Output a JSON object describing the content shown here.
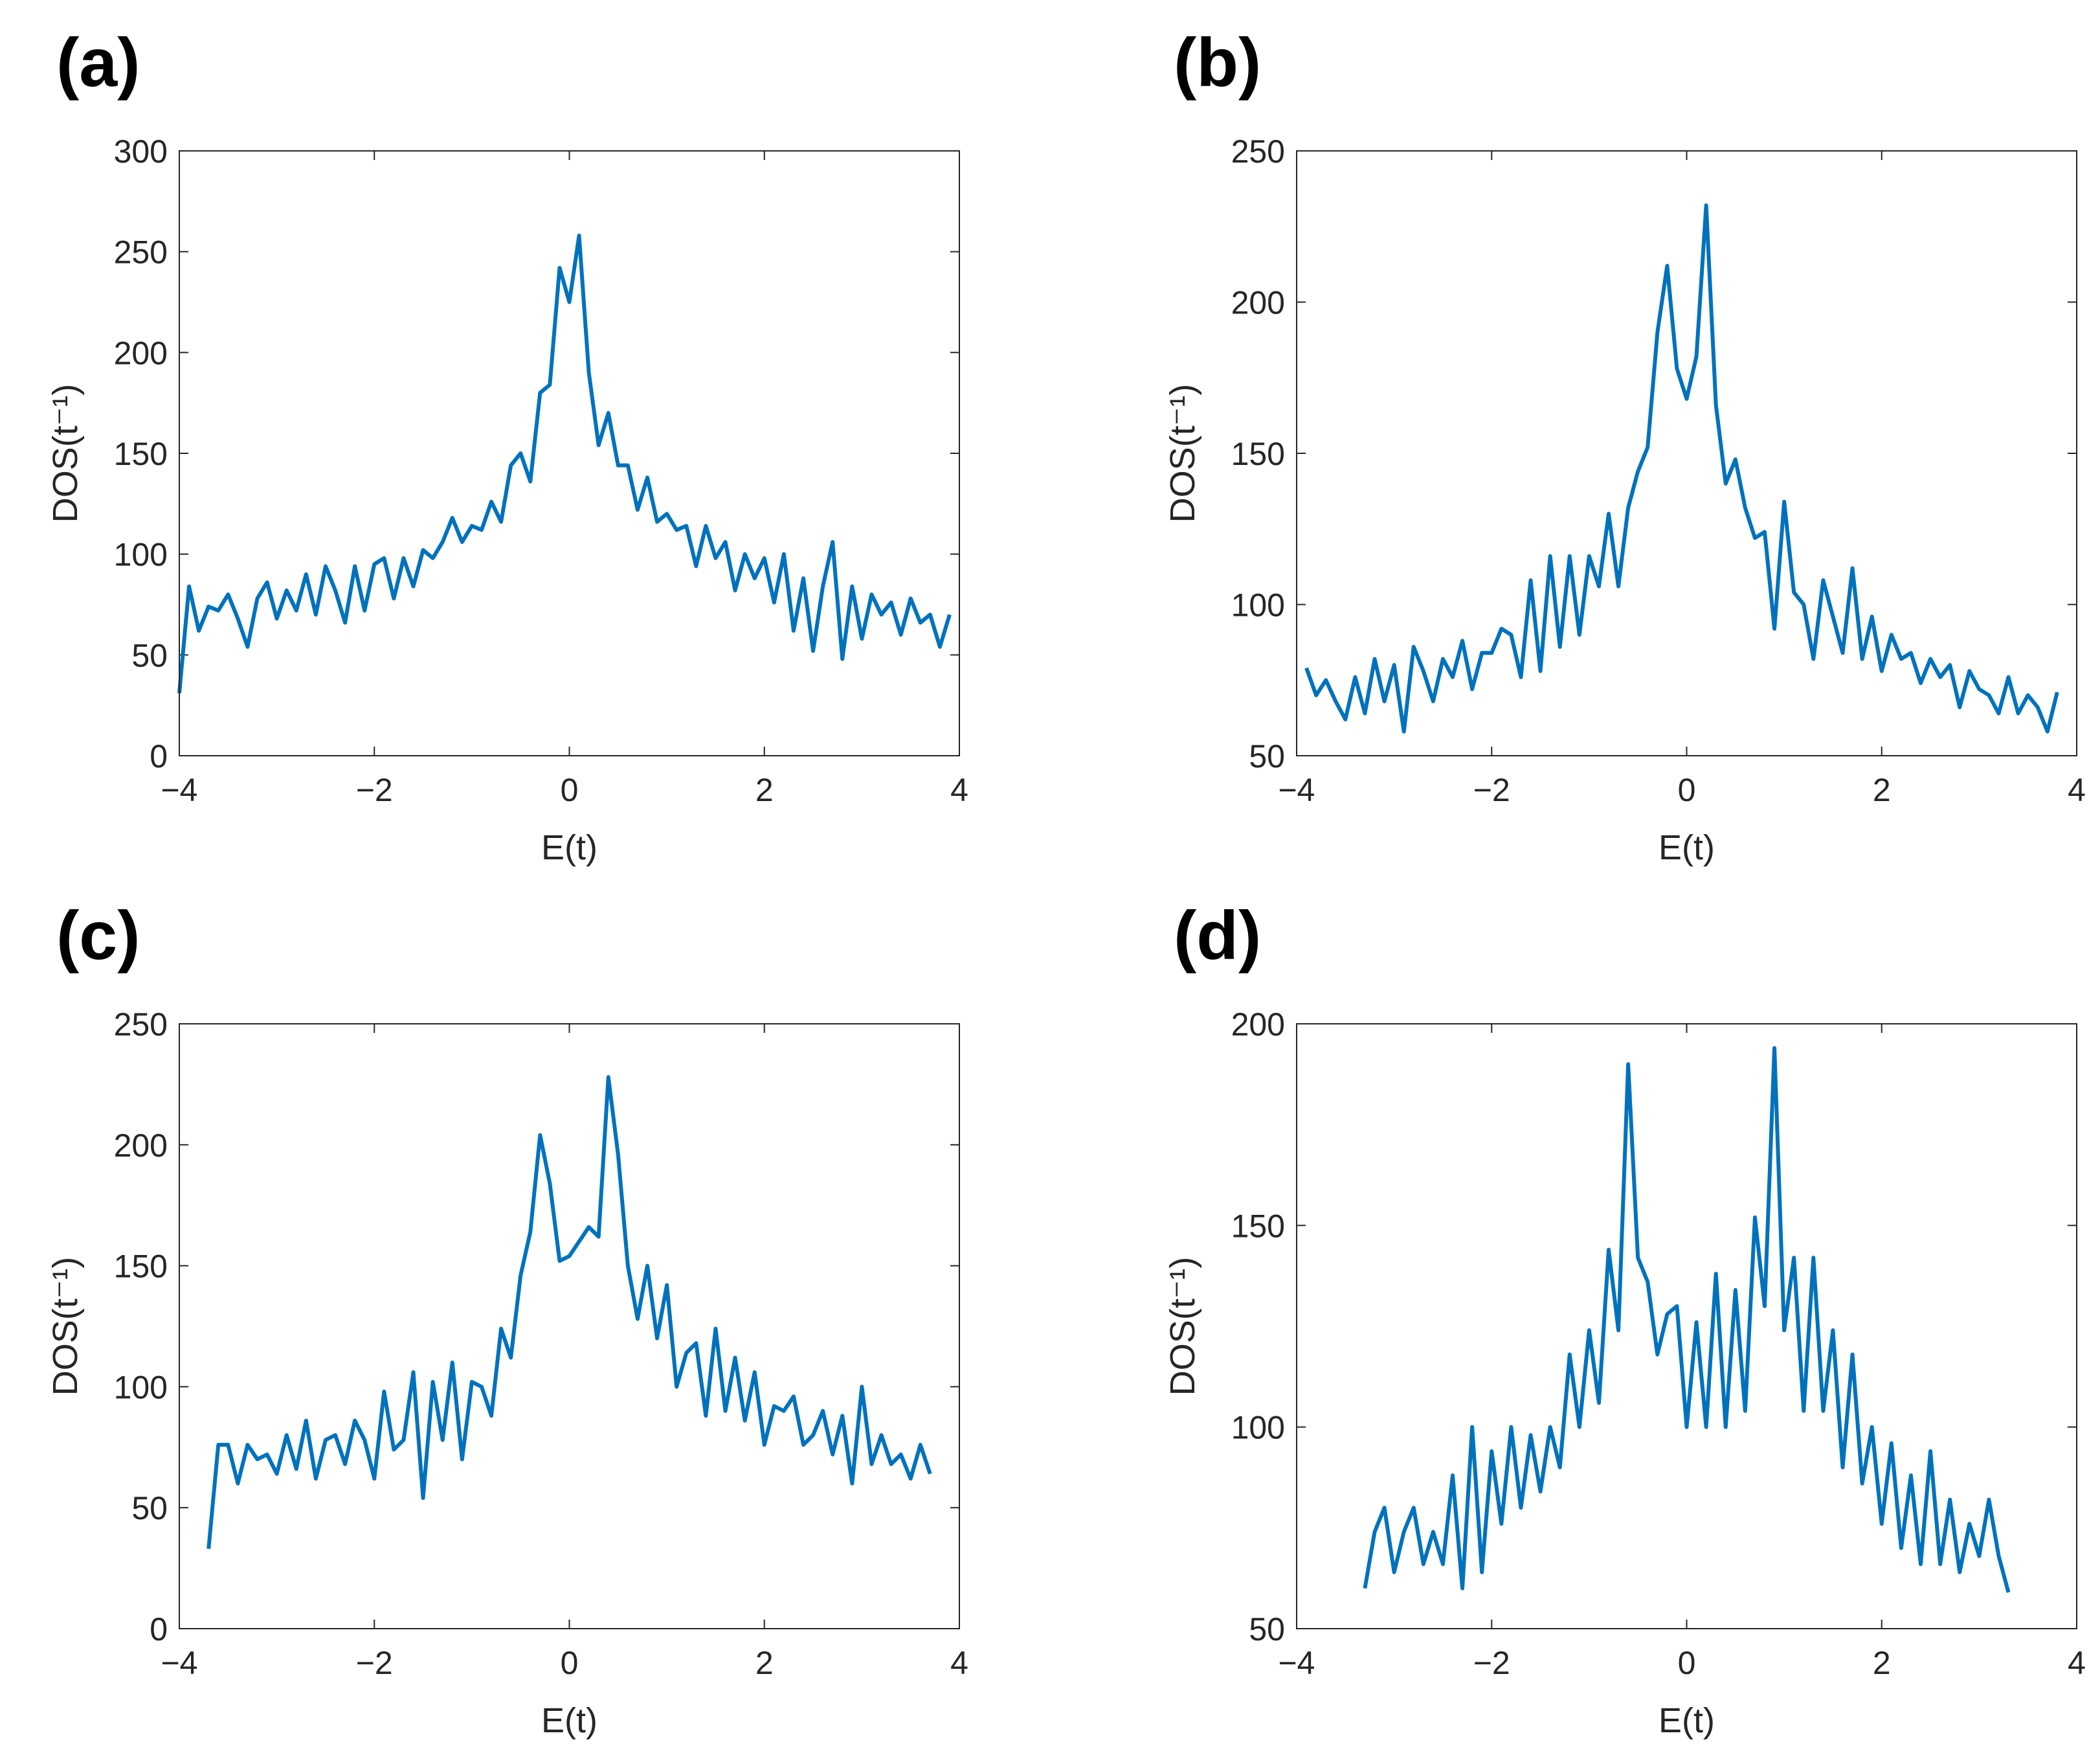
{
  "chart_data": [
    {
      "type": "line",
      "title": "(a)",
      "xlabel": "E(t)",
      "ylabel": "DOS(t⁻¹)",
      "color": "#0072BD",
      "xlim": [
        -4,
        4
      ],
      "xticks": [
        {
          "value": -4,
          "label": "−4"
        },
        {
          "value": -2,
          "label": "−2"
        },
        0,
        2,
        4
      ],
      "ylim": [
        0,
        300
      ],
      "yticks": [
        0,
        50,
        100,
        150,
        200,
        250,
        300
      ],
      "x": [
        -4.0,
        -3.9,
        -3.8,
        -3.7,
        -3.6,
        -3.5,
        -3.4,
        -3.3,
        -3.2,
        -3.1,
        -3.0,
        -2.9,
        -2.8,
        -2.7,
        -2.6,
        -2.5,
        -2.4,
        -2.3,
        -2.2,
        -2.1,
        -2.0,
        -1.9,
        -1.8,
        -1.7,
        -1.6,
        -1.5,
        -1.4,
        -1.3,
        -1.2,
        -1.1,
        -1.0,
        -0.9,
        -0.8,
        -0.7,
        -0.6,
        -0.5,
        -0.4,
        -0.3,
        -0.2,
        -0.1,
        0.0,
        0.1,
        0.2,
        0.3,
        0.4,
        0.5,
        0.6,
        0.7,
        0.8,
        0.9,
        1.0,
        1.1,
        1.2,
        1.3,
        1.4,
        1.5,
        1.6,
        1.7,
        1.8,
        1.9,
        2.0,
        2.1,
        2.2,
        2.3,
        2.4,
        2.5,
        2.6,
        2.7,
        2.8,
        2.9,
        3.0,
        3.1,
        3.2,
        3.3,
        3.4,
        3.5,
        3.6,
        3.7,
        3.8,
        3.9
      ],
      "values": [
        31,
        84,
        62,
        74,
        72,
        80,
        68,
        54,
        78,
        86,
        68,
        82,
        72,
        90,
        70,
        94,
        82,
        66,
        94,
        72,
        95,
        98,
        78,
        98,
        84,
        102,
        98,
        106,
        118,
        106,
        114,
        112,
        126,
        116,
        144,
        150,
        136,
        180,
        184,
        242,
        225,
        258,
        190,
        154,
        170,
        144,
        144,
        122,
        138,
        116,
        120,
        112,
        114,
        94,
        114,
        98,
        106,
        82,
        100,
        88,
        98,
        76,
        100,
        62,
        88,
        52,
        84,
        106,
        48,
        84,
        58,
        80,
        70,
        76,
        60,
        78,
        66,
        70,
        54,
        70
      ]
    },
    {
      "type": "line",
      "title": "(b)",
      "xlabel": "E(t)",
      "ylabel": "DOS(t⁻¹)",
      "color": "#0072BD",
      "xlim": [
        -4,
        4
      ],
      "xticks": [
        {
          "value": -4,
          "label": "−4"
        },
        {
          "value": -2,
          "label": "−2"
        },
        0,
        2,
        4
      ],
      "ylim": [
        50,
        250
      ],
      "yticks": [
        50,
        100,
        150,
        200,
        250
      ],
      "x": [
        -3.9,
        -3.8,
        -3.7,
        -3.6,
        -3.5,
        -3.4,
        -3.3,
        -3.2,
        -3.1,
        -3.0,
        -2.9,
        -2.8,
        -2.7,
        -2.6,
        -2.5,
        -2.4,
        -2.3,
        -2.2,
        -2.1,
        -2.0,
        -1.9,
        -1.8,
        -1.7,
        -1.6,
        -1.5,
        -1.4,
        -1.3,
        -1.2,
        -1.1,
        -1.0,
        -0.9,
        -0.8,
        -0.7,
        -0.6,
        -0.5,
        -0.4,
        -0.3,
        -0.2,
        -0.1,
        0.0,
        0.1,
        0.2,
        0.3,
        0.4,
        0.5,
        0.6,
        0.7,
        0.8,
        0.9,
        1.0,
        1.1,
        1.2,
        1.3,
        1.4,
        1.5,
        1.6,
        1.7,
        1.8,
        1.9,
        2.0,
        2.1,
        2.2,
        2.3,
        2.4,
        2.5,
        2.6,
        2.7,
        2.8,
        2.9,
        3.0,
        3.1,
        3.2,
        3.3,
        3.4,
        3.5,
        3.6,
        3.7,
        3.8
      ],
      "values": [
        79,
        70,
        75,
        68,
        62,
        76,
        64,
        82,
        68,
        80,
        58,
        86,
        78,
        68,
        82,
        76,
        88,
        72,
        84,
        84,
        92,
        90,
        76,
        108,
        78,
        116,
        86,
        116,
        90,
        116,
        106,
        130,
        106,
        132,
        144,
        152,
        190,
        212,
        178,
        168,
        182,
        232,
        166,
        140,
        148,
        132,
        122,
        124,
        92,
        134,
        104,
        100,
        82,
        108,
        96,
        84,
        112,
        82,
        96,
        78,
        90,
        82,
        84,
        74,
        82,
        76,
        80,
        66,
        78,
        72,
        70,
        64,
        76,
        64,
        70,
        66,
        58,
        71
      ]
    },
    {
      "type": "line",
      "title": "(c)",
      "xlabel": "E(t)",
      "ylabel": "DOS(t⁻¹)",
      "color": "#0072BD",
      "xlim": [
        -4,
        4
      ],
      "xticks": [
        {
          "value": -4,
          "label": "−4"
        },
        {
          "value": -2,
          "label": "−2"
        },
        0,
        2,
        4
      ],
      "ylim": [
        0,
        250
      ],
      "yticks": [
        0,
        50,
        100,
        150,
        200,
        250
      ],
      "x": [
        -3.7,
        -3.6,
        -3.5,
        -3.4,
        -3.3,
        -3.2,
        -3.1,
        -3.0,
        -2.9,
        -2.8,
        -2.7,
        -2.6,
        -2.5,
        -2.4,
        -2.3,
        -2.2,
        -2.1,
        -2.0,
        -1.9,
        -1.8,
        -1.7,
        -1.6,
        -1.5,
        -1.4,
        -1.3,
        -1.2,
        -1.1,
        -1.0,
        -0.9,
        -0.8,
        -0.7,
        -0.6,
        -0.5,
        -0.4,
        -0.3,
        -0.2,
        -0.1,
        0.0,
        0.1,
        0.2,
        0.3,
        0.4,
        0.5,
        0.6,
        0.7,
        0.8,
        0.9,
        1.0,
        1.1,
        1.2,
        1.3,
        1.4,
        1.5,
        1.6,
        1.7,
        1.8,
        1.9,
        2.0,
        2.1,
        2.2,
        2.3,
        2.4,
        2.5,
        2.6,
        2.7,
        2.8,
        2.9,
        3.0,
        3.1,
        3.2,
        3.3,
        3.4,
        3.5,
        3.6,
        3.7
      ],
      "values": [
        33,
        76,
        76,
        60,
        76,
        70,
        72,
        64,
        80,
        66,
        86,
        62,
        78,
        80,
        68,
        86,
        78,
        62,
        98,
        74,
        78,
        106,
        54,
        102,
        78,
        110,
        70,
        102,
        100,
        88,
        124,
        112,
        146,
        164,
        204,
        184,
        152,
        154,
        160,
        166,
        162,
        228,
        196,
        150,
        128,
        150,
        120,
        142,
        100,
        114,
        118,
        88,
        124,
        90,
        112,
        86,
        106,
        76,
        92,
        90,
        96,
        76,
        80,
        90,
        72,
        88,
        60,
        100,
        68,
        80,
        68,
        72,
        62,
        76,
        64
      ]
    },
    {
      "type": "line",
      "title": "(d)",
      "xlabel": "E(t)",
      "ylabel": "DOS(t⁻¹)",
      "color": "#0072BD",
      "xlim": [
        -4,
        4
      ],
      "xticks": [
        {
          "value": -4,
          "label": "−4"
        },
        {
          "value": -2,
          "label": "−2"
        },
        0,
        2,
        4
      ],
      "ylim": [
        50,
        200
      ],
      "yticks": [
        50,
        100,
        150,
        200
      ],
      "x": [
        -3.3,
        -3.2,
        -3.1,
        -3.0,
        -2.9,
        -2.8,
        -2.7,
        -2.6,
        -2.5,
        -2.4,
        -2.3,
        -2.2,
        -2.1,
        -2.0,
        -1.9,
        -1.8,
        -1.7,
        -1.6,
        -1.5,
        -1.4,
        -1.3,
        -1.2,
        -1.1,
        -1.0,
        -0.9,
        -0.8,
        -0.7,
        -0.6,
        -0.5,
        -0.4,
        -0.3,
        -0.2,
        -0.1,
        0.0,
        0.1,
        0.2,
        0.3,
        0.4,
        0.5,
        0.6,
        0.7,
        0.8,
        0.9,
        1.0,
        1.1,
        1.2,
        1.3,
        1.4,
        1.5,
        1.6,
        1.7,
        1.8,
        1.9,
        2.0,
        2.1,
        2.2,
        2.3,
        2.4,
        2.5,
        2.6,
        2.7,
        2.8,
        2.9,
        3.0,
        3.1,
        3.2,
        3.3
      ],
      "values": [
        60,
        74,
        80,
        64,
        74,
        80,
        66,
        74,
        66,
        88,
        60,
        100,
        64,
        94,
        76,
        100,
        80,
        98,
        84,
        100,
        90,
        118,
        100,
        124,
        106,
        144,
        124,
        190,
        142,
        136,
        118,
        128,
        130,
        100,
        126,
        100,
        138,
        100,
        134,
        104,
        152,
        130,
        194,
        124,
        142,
        104,
        142,
        104,
        124,
        90,
        118,
        86,
        100,
        76,
        96,
        70,
        88,
        66,
        94,
        66,
        82,
        64,
        76,
        68,
        82,
        68,
        59
      ]
    }
  ]
}
